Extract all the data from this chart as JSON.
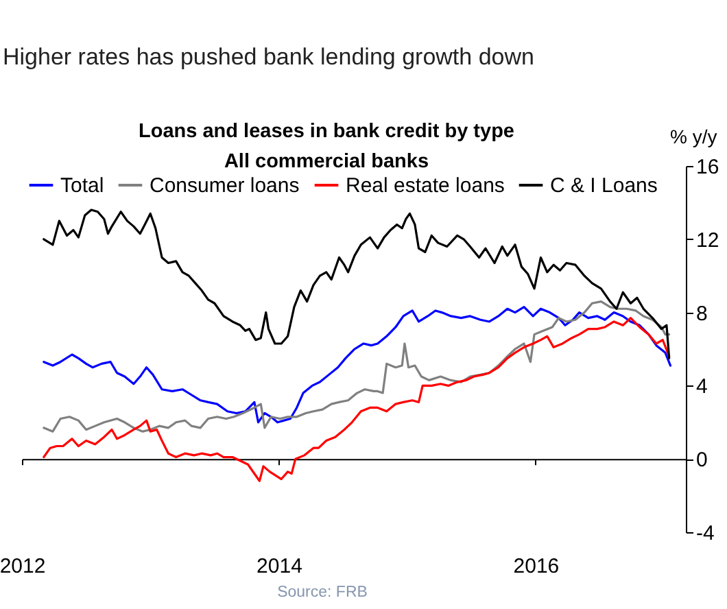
{
  "chart_data": {
    "type": "line",
    "title": "Higher rates has pushed bank lending growth down",
    "subtitle": "Loans and leases in bank credit by type\nAll commercial banks",
    "ylabel": "% y/y",
    "annotations": [
      "Source: FRB"
    ],
    "xlim": [
      2012,
      2017.17
    ],
    "xticks": [
      2012,
      2014,
      2016
    ],
    "ylim": [
      -4,
      16
    ],
    "yticks": [
      -4,
      0,
      4,
      8,
      12,
      16
    ],
    "legend": "top left",
    "series": [
      {
        "name": "Total",
        "color": "#0000ff",
        "x": [
          2012.17,
          2012.24,
          2012.3,
          2012.39,
          2012.44,
          2012.5,
          2012.55,
          2012.62,
          2012.69,
          2012.74,
          2012.8,
          2012.87,
          2012.92,
          2012.97,
          2013.02,
          2013.09,
          2013.17,
          2013.25,
          2013.32,
          2013.39,
          2013.45,
          2013.52,
          2013.6,
          2013.67,
          2013.74,
          2013.81,
          2013.84,
          2013.89,
          2013.94,
          2013.99,
          2014.04,
          2014.09,
          2014.14,
          2014.19,
          2014.26,
          2014.32,
          2014.39,
          2014.46,
          2014.52,
          2014.59,
          2014.66,
          2014.72,
          2014.77,
          2014.84,
          2014.91,
          2014.97,
          2015.04,
          2015.09,
          2015.16,
          2015.22,
          2015.27,
          2015.34,
          2015.42,
          2015.49,
          2015.57,
          2015.64,
          2015.71,
          2015.78,
          2015.84,
          2015.91,
          2015.98,
          2016.04,
          2016.11,
          2016.18,
          2016.23,
          2016.29,
          2016.34,
          2016.41,
          2016.48,
          2016.54,
          2016.61,
          2016.68,
          2016.74,
          2016.81,
          2016.88,
          2016.94,
          2017.01,
          2017.05
        ],
        "values": [
          5.3,
          5.1,
          5.3,
          5.7,
          5.5,
          5.2,
          5.0,
          5.2,
          5.3,
          4.7,
          4.5,
          4.1,
          4.5,
          5.0,
          4.6,
          3.8,
          3.7,
          3.8,
          3.5,
          3.2,
          3.1,
          3.0,
          2.6,
          2.5,
          2.6,
          3.1,
          2.0,
          2.5,
          2.3,
          2.0,
          2.1,
          2.2,
          2.8,
          3.6,
          4.0,
          4.2,
          4.6,
          5.0,
          5.5,
          6.0,
          6.3,
          6.2,
          6.3,
          6.7,
          7.2,
          7.8,
          8.1,
          7.5,
          7.8,
          8.1,
          8.0,
          7.8,
          7.7,
          7.8,
          7.6,
          7.5,
          7.8,
          8.2,
          8.0,
          8.3,
          7.8,
          8.2,
          8.0,
          7.7,
          7.3,
          7.6,
          8.0,
          7.7,
          7.8,
          7.6,
          8.0,
          7.8,
          7.5,
          7.3,
          6.8,
          6.2,
          5.8,
          5.1
        ]
      },
      {
        "name": "Consumer loans",
        "color": "#808080",
        "x": [
          2012.17,
          2012.24,
          2012.3,
          2012.37,
          2012.44,
          2012.5,
          2012.57,
          2012.64,
          2012.74,
          2012.8,
          2012.87,
          2012.94,
          2013.0,
          2013.07,
          2013.14,
          2013.2,
          2013.27,
          2013.32,
          2013.39,
          2013.45,
          2013.52,
          2013.59,
          2013.65,
          2013.72,
          2013.81,
          2013.86,
          2013.89,
          2013.94,
          2014.01,
          2014.07,
          2014.14,
          2014.21,
          2014.27,
          2014.34,
          2014.41,
          2014.47,
          2014.54,
          2014.61,
          2014.67,
          2014.74,
          2014.77,
          2014.81,
          2014.84,
          2014.91,
          2014.96,
          2014.98,
          2015.01,
          2015.06,
          2015.11,
          2015.17,
          2015.26,
          2015.34,
          2015.42,
          2015.49,
          2015.57,
          2015.64,
          2015.71,
          2015.78,
          2015.84,
          2015.91,
          2015.96,
          2015.99,
          2016.06,
          2016.13,
          2016.18,
          2016.24,
          2016.31,
          2016.38,
          2016.44,
          2016.51,
          2016.58,
          2016.64,
          2016.71,
          2016.78,
          2016.84,
          2016.91,
          2016.98,
          2017.01,
          2017.04
        ],
        "values": [
          1.7,
          1.5,
          2.2,
          2.3,
          2.1,
          1.6,
          1.8,
          2.0,
          2.2,
          2.0,
          1.7,
          1.5,
          1.6,
          1.8,
          1.7,
          2.0,
          2.1,
          1.8,
          1.7,
          2.2,
          2.3,
          2.2,
          2.3,
          2.5,
          2.8,
          3.0,
          1.7,
          2.3,
          2.2,
          2.3,
          2.3,
          2.5,
          2.6,
          2.7,
          3.0,
          3.1,
          3.2,
          3.6,
          3.8,
          3.7,
          3.7,
          3.6,
          5.2,
          5.0,
          5.1,
          6.3,
          5.0,
          5.1,
          4.5,
          4.3,
          4.5,
          4.3,
          4.2,
          4.5,
          4.6,
          4.7,
          5.1,
          5.6,
          6.0,
          6.3,
          5.3,
          6.8,
          7.0,
          7.2,
          7.7,
          7.5,
          7.6,
          8.0,
          8.5,
          8.6,
          8.3,
          8.2,
          8.2,
          8.1,
          7.8,
          7.6,
          7.2,
          6.8,
          6.8
        ]
      },
      {
        "name": "Real estate loans",
        "color": "#ff0000",
        "x": [
          2012.17,
          2012.22,
          2012.27,
          2012.32,
          2012.39,
          2012.44,
          2012.5,
          2012.57,
          2012.64,
          2012.7,
          2012.74,
          2012.8,
          2012.87,
          2012.92,
          2012.97,
          2013.0,
          2013.05,
          2013.09,
          2013.14,
          2013.2,
          2013.27,
          2013.34,
          2013.4,
          2013.47,
          2013.52,
          2013.57,
          2013.64,
          2013.76,
          2013.85,
          2013.88,
          2013.93,
          2014.02,
          2014.07,
          2014.1,
          2014.13,
          2014.2,
          2014.27,
          2014.31,
          2014.37,
          2014.44,
          2014.51,
          2014.57,
          2014.64,
          2014.71,
          2014.77,
          2014.84,
          2014.91,
          2014.97,
          2015.04,
          2015.09,
          2015.12,
          2015.19,
          2015.26,
          2015.32,
          2015.39,
          2015.46,
          2015.52,
          2015.59,
          2015.64,
          2015.71,
          2015.78,
          2015.84,
          2015.91,
          2015.98,
          2016.04,
          2016.09,
          2016.14,
          2016.21,
          2016.28,
          2016.34,
          2016.41,
          2016.48,
          2016.54,
          2016.61,
          2016.68,
          2016.74,
          2016.81,
          2016.88,
          2016.94,
          2016.99,
          2017.04
        ],
        "values": [
          0.1,
          0.6,
          0.7,
          0.7,
          1.1,
          0.7,
          1.0,
          0.8,
          1.2,
          1.6,
          1.1,
          1.3,
          1.6,
          1.8,
          2.1,
          1.5,
          1.6,
          1.0,
          0.3,
          0.1,
          0.3,
          0.2,
          0.3,
          0.2,
          0.3,
          0.1,
          0.1,
          -0.3,
          -1.2,
          -0.4,
          -0.7,
          -1.1,
          -0.7,
          -0.8,
          0.0,
          0.2,
          0.6,
          0.6,
          1.0,
          1.2,
          1.6,
          2.0,
          2.6,
          2.8,
          2.8,
          2.6,
          3.0,
          3.1,
          3.2,
          3.1,
          4.0,
          4.0,
          4.1,
          4.0,
          4.2,
          4.3,
          4.5,
          4.6,
          4.7,
          5.0,
          5.5,
          5.8,
          6.1,
          6.3,
          6.5,
          6.7,
          6.1,
          6.3,
          6.6,
          6.8,
          7.1,
          7.1,
          7.2,
          7.5,
          7.3,
          7.7,
          7.2,
          6.8,
          6.3,
          6.5,
          5.6
        ]
      },
      {
        "name": "C & I Loans",
        "color": "#000000",
        "x": [
          2012.17,
          2012.24,
          2012.29,
          2012.35,
          2012.4,
          2012.44,
          2012.49,
          2012.54,
          2012.59,
          2012.64,
          2012.67,
          2012.7,
          2012.77,
          2012.82,
          2012.87,
          2012.92,
          2012.95,
          2013.0,
          2013.04,
          2013.09,
          2013.14,
          2013.2,
          2013.25,
          2013.3,
          2013.35,
          2013.4,
          2013.45,
          2013.5,
          2013.57,
          2013.64,
          2013.7,
          2013.74,
          2013.77,
          2013.82,
          2013.86,
          2013.9,
          2013.92,
          2013.97,
          2014.02,
          2014.07,
          2014.12,
          2014.17,
          2014.22,
          2014.27,
          2014.32,
          2014.37,
          2014.41,
          2014.47,
          2014.51,
          2014.54,
          2014.59,
          2014.64,
          2014.71,
          2014.77,
          2014.82,
          2014.87,
          2014.92,
          2014.96,
          2014.99,
          2015.02,
          2015.06,
          2015.09,
          2015.14,
          2015.19,
          2015.24,
          2015.31,
          2015.39,
          2015.44,
          2015.49,
          2015.56,
          2015.61,
          2015.68,
          2015.74,
          2015.78,
          2015.84,
          2015.89,
          2015.94,
          2015.99,
          2016.04,
          2016.09,
          2016.14,
          2016.19,
          2016.24,
          2016.31,
          2016.38,
          2016.44,
          2016.51,
          2016.58,
          2016.63,
          2016.68,
          2016.74,
          2016.79,
          2016.84,
          2016.91,
          2016.98,
          2017.02,
          2017.04
        ],
        "values": [
          12.0,
          11.7,
          13.0,
          12.2,
          12.5,
          12.1,
          13.3,
          13.6,
          13.5,
          13.1,
          12.3,
          12.7,
          13.5,
          13.0,
          12.7,
          12.3,
          12.7,
          13.4,
          12.6,
          11.0,
          10.7,
          10.8,
          10.2,
          10.0,
          9.6,
          9.2,
          8.7,
          8.5,
          7.8,
          7.5,
          7.3,
          7.0,
          7.1,
          6.5,
          6.6,
          8.0,
          7.1,
          6.3,
          6.3,
          6.7,
          8.3,
          9.2,
          8.6,
          9.5,
          10.0,
          10.2,
          9.8,
          11.0,
          10.6,
          10.2,
          11.1,
          11.7,
          12.1,
          11.5,
          12.1,
          12.5,
          12.8,
          12.6,
          13.1,
          13.4,
          12.8,
          11.5,
          11.3,
          12.2,
          11.8,
          11.6,
          12.2,
          12.0,
          11.6,
          11.0,
          11.5,
          10.7,
          11.6,
          11.1,
          11.7,
          10.5,
          10.1,
          9.3,
          11.0,
          10.2,
          10.6,
          10.3,
          10.7,
          10.6,
          10.0,
          9.6,
          9.3,
          8.6,
          8.2,
          9.1,
          8.5,
          8.8,
          8.2,
          7.7,
          7.1,
          7.3,
          5.5
        ]
      }
    ]
  }
}
